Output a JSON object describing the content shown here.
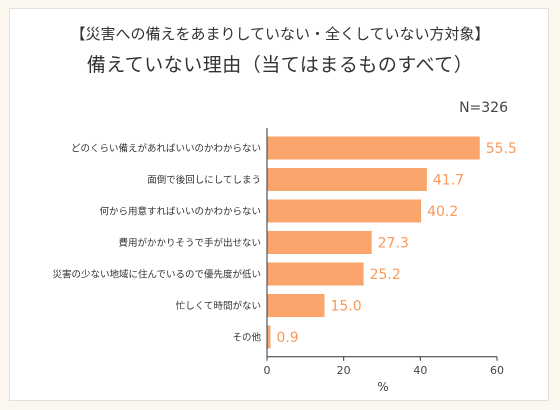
{
  "header": {
    "title_line1": "【災害への備えをあまりしていない・全くしていない方対象】",
    "title_line2": "備えていない理由（当てはまるものすべて）",
    "sample_size": "N=326"
  },
  "colors": {
    "bar": "#f9a56b",
    "value_label": "#f79a5a",
    "background": "#fbf6ee"
  },
  "chart_data": {
    "type": "bar",
    "orientation": "horizontal",
    "categories": [
      "どのくらい備えがあればいいのかわからない",
      "面倒で後回しにしてしまう",
      "何から用意すればいいのかわからない",
      "費用がかかりそうで手が出せない",
      "災害の少ない地域に住んでいるので優先度が低い",
      "忙しくて時間がない",
      "その他"
    ],
    "values": [
      55.5,
      41.7,
      40.2,
      27.3,
      25.2,
      15.0,
      0.9
    ],
    "value_labels": [
      "55.5",
      "41.7",
      "40.2",
      "27.3",
      "25.2",
      "15.0",
      "0.9"
    ],
    "xlim": [
      0,
      60
    ],
    "xticks": [
      "0",
      "20",
      "40",
      "60"
    ],
    "xlabel": "%",
    "grid": false
  }
}
